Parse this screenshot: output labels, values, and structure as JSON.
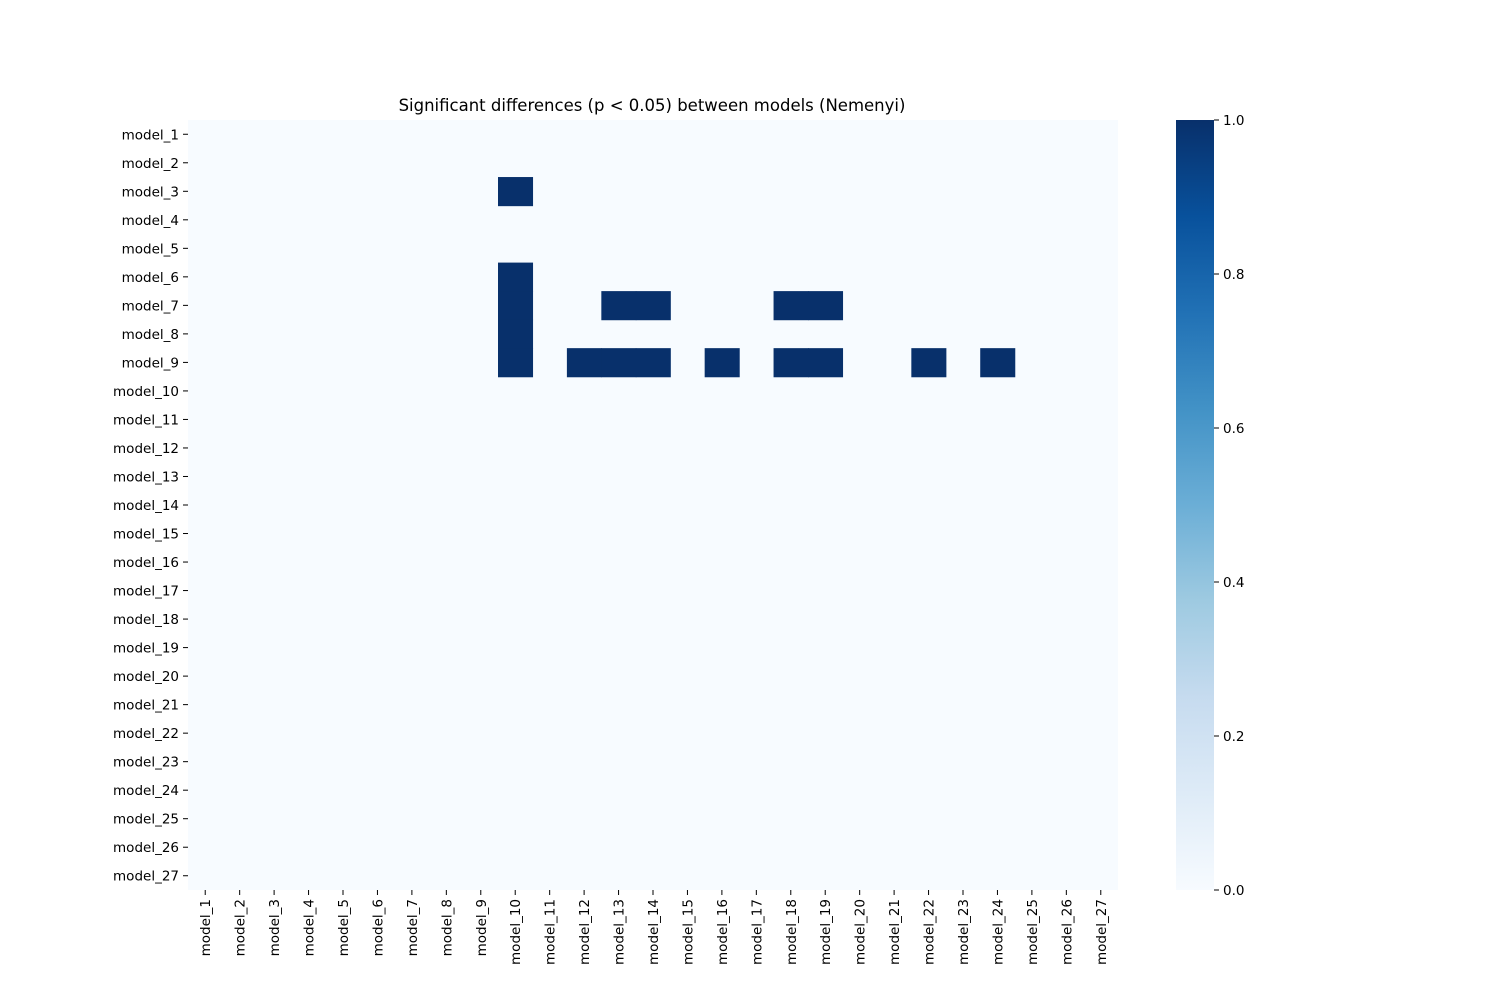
{
  "chart_data": {
    "type": "heatmap",
    "title": "Significant differences (p < 0.05) between models (Nemenyi)",
    "xlabel": "",
    "ylabel": "",
    "rows": [
      "model_1",
      "model_2",
      "model_3",
      "model_4",
      "model_5",
      "model_6",
      "model_7",
      "model_8",
      "model_9",
      "model_10",
      "model_11",
      "model_12",
      "model_13",
      "model_14",
      "model_15",
      "model_16",
      "model_17",
      "model_18",
      "model_19",
      "model_20",
      "model_21",
      "model_22",
      "model_23",
      "model_24",
      "model_25",
      "model_26",
      "model_27"
    ],
    "columns": [
      "model_1",
      "model_2",
      "model_3",
      "model_4",
      "model_5",
      "model_6",
      "model_7",
      "model_8",
      "model_9",
      "model_10",
      "model_11",
      "model_12",
      "model_13",
      "model_14",
      "model_15",
      "model_16",
      "model_17",
      "model_18",
      "model_19",
      "model_20",
      "model_21",
      "model_22",
      "model_23",
      "model_24",
      "model_25",
      "model_26",
      "model_27"
    ],
    "significant_pairs": [
      [
        "model_3",
        "model_10"
      ],
      [
        "model_6",
        "model_10"
      ],
      [
        "model_7",
        "model_10"
      ],
      [
        "model_7",
        "model_13"
      ],
      [
        "model_7",
        "model_14"
      ],
      [
        "model_7",
        "model_18"
      ],
      [
        "model_7",
        "model_19"
      ],
      [
        "model_8",
        "model_10"
      ],
      [
        "model_9",
        "model_10"
      ],
      [
        "model_9",
        "model_12"
      ],
      [
        "model_9",
        "model_13"
      ],
      [
        "model_9",
        "model_14"
      ],
      [
        "model_9",
        "model_16"
      ],
      [
        "model_9",
        "model_18"
      ],
      [
        "model_9",
        "model_19"
      ],
      [
        "model_9",
        "model_22"
      ],
      [
        "model_9",
        "model_24"
      ]
    ],
    "value_range": [
      0,
      1
    ],
    "colormap": "Blues",
    "colorbar": {
      "ticks": [
        "0.0",
        "0.2",
        "0.4",
        "0.6",
        "0.8",
        "1.0"
      ],
      "tick_values": [
        0,
        0.2,
        0.4,
        0.6,
        0.8,
        1.0
      ]
    },
    "colors": {
      "low": "#f7fbff",
      "high": "#08306b"
    },
    "grid": false,
    "legend": "none"
  }
}
